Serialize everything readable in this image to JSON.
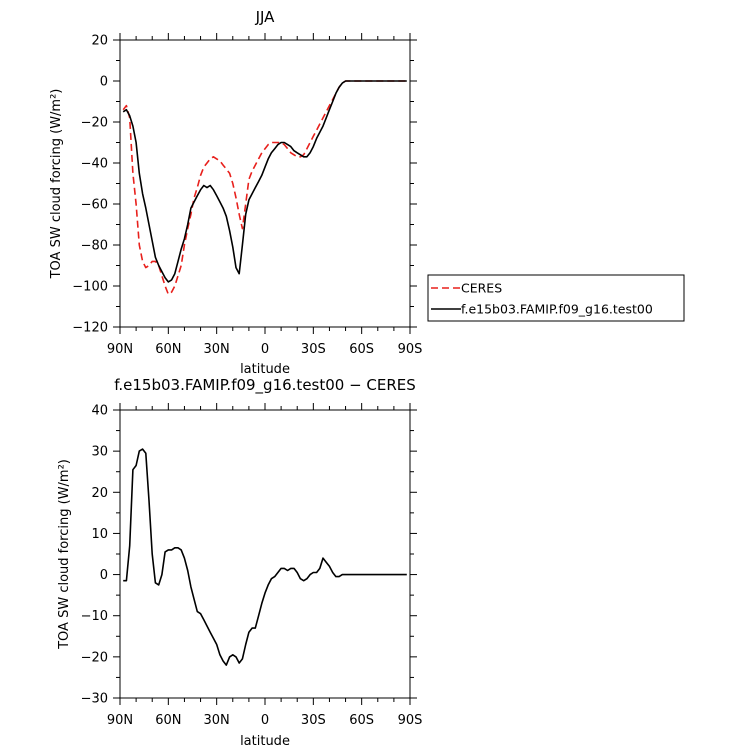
{
  "chart_data": [
    {
      "type": "line",
      "title": "JJA",
      "xlabel": "latitude",
      "ylabel": "TOA SW cloud forcing (W/m²)",
      "xlim": [
        90,
        -90
      ],
      "ylim": [
        -120,
        20
      ],
      "xticks": [
        90,
        60,
        30,
        0,
        -30,
        -60,
        -90
      ],
      "xtick_labels": [
        "90N",
        "60N",
        "30N",
        "0",
        "30S",
        "60S",
        "90S"
      ],
      "yticks": [
        -120,
        -100,
        -80,
        -60,
        -40,
        -20,
        0,
        20
      ],
      "ytick_labels": [
        "−120",
        "−100",
        "−80",
        "−60",
        "−40",
        "−20",
        "0",
        "20"
      ],
      "legend": {
        "placement": "right"
      },
      "series": [
        {
          "name": "CERES",
          "color": "#e8201c",
          "dash": "dashed",
          "x": [
            88,
            86,
            84,
            82,
            80,
            78,
            76,
            74,
            72,
            70,
            68,
            66,
            64,
            62,
            60,
            58,
            56,
            54,
            52,
            50,
            48,
            46,
            44,
            42,
            40,
            38,
            36,
            34,
            32,
            30,
            28,
            26,
            24,
            22,
            20,
            18,
            16,
            14,
            12,
            10,
            8,
            6,
            4,
            2,
            0,
            -2,
            -4,
            -6,
            -8,
            -10,
            -12,
            -14,
            -16,
            -18,
            -20,
            -22,
            -24,
            -26,
            -28,
            -30,
            -32,
            -34,
            -36,
            -38,
            -40,
            -42,
            -44,
            -46,
            -48,
            -50,
            -52,
            -54,
            -56,
            -58,
            -60,
            -62,
            -64,
            -66,
            -68,
            -70,
            -72,
            -74,
            -76,
            -78,
            -80,
            -82,
            -84,
            -86,
            -88
          ],
          "y": [
            -14,
            -12,
            -18,
            -45,
            -60,
            -80,
            -88,
            -91,
            -90,
            -88,
            -88,
            -90,
            -95,
            -100,
            -104,
            -103,
            -100,
            -95,
            -90,
            -80,
            -72,
            -65,
            -57,
            -52,
            -46,
            -42,
            -40,
            -38,
            -37,
            -38,
            -39,
            -41,
            -43,
            -45,
            -50,
            -57,
            -65,
            -72,
            -60,
            -48,
            -44,
            -41,
            -38,
            -35,
            -33,
            -31,
            -30,
            -30,
            -30,
            -30,
            -31,
            -33,
            -35,
            -36,
            -37,
            -37,
            -36,
            -33,
            -30,
            -27,
            -24,
            -21,
            -18,
            -15,
            -12,
            -9,
            -6,
            -3,
            -1,
            0,
            0,
            0,
            0,
            0,
            0,
            0,
            0,
            0,
            0,
            0,
            0,
            0,
            0,
            0,
            0,
            0,
            0,
            0,
            0
          ]
        },
        {
          "name": "f.e15b03.FAMIP.f09_g16.test00",
          "color": "#000000",
          "dash": "solid",
          "x": [
            88,
            86,
            84,
            82,
            80,
            78,
            76,
            74,
            72,
            70,
            68,
            66,
            64,
            62,
            60,
            58,
            56,
            54,
            52,
            50,
            48,
            46,
            44,
            42,
            40,
            38,
            36,
            34,
            32,
            30,
            28,
            26,
            24,
            22,
            20,
            18,
            16,
            14,
            12,
            10,
            8,
            6,
            4,
            2,
            0,
            -2,
            -4,
            -6,
            -8,
            -10,
            -12,
            -14,
            -16,
            -18,
            -20,
            -22,
            -24,
            -26,
            -28,
            -30,
            -32,
            -34,
            -36,
            -38,
            -40,
            -42,
            -44,
            -46,
            -48,
            -50,
            -52,
            -54,
            -56,
            -58,
            -60,
            -62,
            -64,
            -66,
            -68,
            -70,
            -72,
            -74,
            -76,
            -78,
            -80,
            -82,
            -84,
            -86,
            -88
          ],
          "y": [
            -15,
            -14,
            -17,
            -22,
            -30,
            -45,
            -55,
            -62,
            -70,
            -78,
            -86,
            -90,
            -93,
            -96,
            -98,
            -97,
            -94,
            -88,
            -82,
            -77,
            -70,
            -62,
            -59,
            -56,
            -53,
            -51,
            -52,
            -51,
            -53,
            -56,
            -59,
            -62,
            -66,
            -73,
            -81,
            -91,
            -94,
            -80,
            -65,
            -58,
            -55,
            -52,
            -49,
            -46,
            -42,
            -38,
            -35,
            -33,
            -31,
            -30,
            -30,
            -31,
            -32,
            -34,
            -35,
            -36,
            -37,
            -37,
            -35,
            -32,
            -28,
            -25,
            -22,
            -18,
            -14,
            -10,
            -6,
            -3,
            -1,
            0,
            0,
            0,
            0,
            0,
            0,
            0,
            0,
            0,
            0,
            0,
            0,
            0,
            0,
            0,
            0,
            0,
            0,
            0,
            0
          ]
        }
      ]
    },
    {
      "type": "line",
      "title": "f.e15b03.FAMIP.f09_g16.test00 − CERES",
      "xlabel": "latitude",
      "ylabel": "TOA SW cloud forcing (W/m²)",
      "xlim": [
        90,
        -90
      ],
      "ylim": [
        -30,
        40
      ],
      "xticks": [
        90,
        60,
        30,
        0,
        -30,
        -60,
        -90
      ],
      "xtick_labels": [
        "90N",
        "60N",
        "30N",
        "0",
        "30S",
        "60S",
        "90S"
      ],
      "yticks": [
        -30,
        -20,
        -10,
        0,
        10,
        20,
        30,
        40
      ],
      "ytick_labels": [
        "−30",
        "−20",
        "−10",
        "0",
        "10",
        "20",
        "30",
        "40"
      ],
      "series": [
        {
          "color": "#000000",
          "dash": "solid",
          "x": [
            88,
            86,
            84,
            82,
            80,
            78,
            76,
            74,
            72,
            70,
            68,
            66,
            64,
            62,
            60,
            58,
            56,
            54,
            52,
            50,
            48,
            46,
            44,
            42,
            40,
            38,
            36,
            34,
            32,
            30,
            28,
            26,
            24,
            22,
            20,
            18,
            16,
            14,
            12,
            10,
            8,
            6,
            4,
            2,
            0,
            -2,
            -4,
            -6,
            -8,
            -10,
            -12,
            -14,
            -16,
            -18,
            -20,
            -22,
            -24,
            -26,
            -28,
            -30,
            -32,
            -34,
            -36,
            -38,
            -40,
            -42,
            -44,
            -46,
            -48,
            -50,
            -52,
            -54,
            -56,
            -58,
            -60,
            -62,
            -64,
            -66,
            -68,
            -70,
            -72,
            -74,
            -76,
            -78,
            -80,
            -82,
            -84,
            -86,
            -88
          ],
          "y": [
            -1.5,
            -1.5,
            7,
            25.5,
            26.5,
            30,
            30.5,
            29.5,
            18,
            5,
            -2,
            -2.5,
            0,
            5.5,
            6,
            6,
            6.5,
            6.5,
            6,
            4,
            1,
            -3,
            -6,
            -9,
            -9.5,
            -11,
            -12.5,
            -14,
            -15.5,
            -17,
            -19.5,
            -21,
            -22,
            -20,
            -19.5,
            -20,
            -21.5,
            -20.5,
            -17,
            -14,
            -13,
            -13,
            -10,
            -7,
            -4.5,
            -2.5,
            -1,
            -0.5,
            0.5,
            1.5,
            1.5,
            1,
            1.5,
            1.5,
            0.5,
            -1,
            -1.5,
            -1,
            0,
            0.5,
            0.5,
            1.5,
            4,
            3,
            2,
            0.5,
            -0.5,
            -0.5,
            0,
            0,
            0,
            0,
            0,
            0,
            0,
            0,
            0,
            0,
            0,
            0,
            0,
            0,
            0,
            0,
            0,
            0,
            0,
            0,
            0
          ]
        }
      ]
    }
  ]
}
